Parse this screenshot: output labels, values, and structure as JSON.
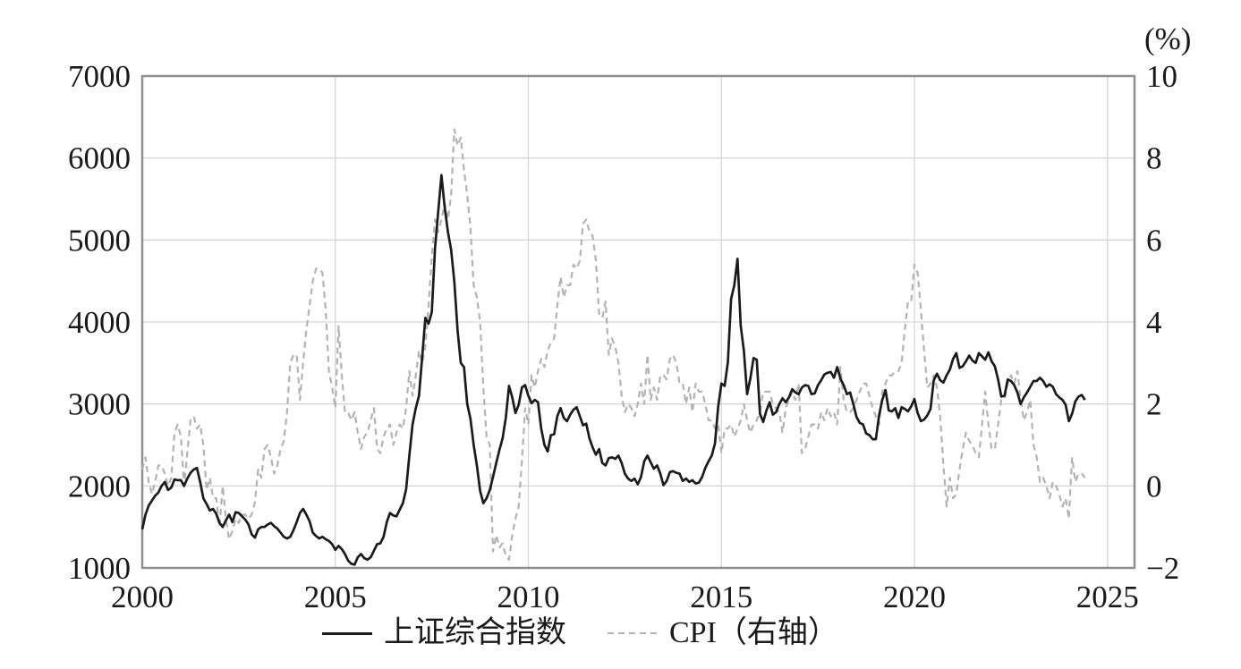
{
  "figure": {
    "background": "#ffffff"
  },
  "chart_data": {
    "type": "line",
    "title": "",
    "frequency": "monthly",
    "start": "2000-01",
    "colors": {
      "grid": "#d6d6d6",
      "frame": "#8f8f8f",
      "text": "#1a1a1a",
      "sse_line": "#1b1b1b",
      "cpi_line": "#b3b3b3"
    },
    "x_axis": {
      "min": 2000,
      "max": 2025.7,
      "labels": [
        "2000",
        "2005",
        "2010",
        "2015",
        "2020",
        "2025"
      ],
      "values": [
        2000,
        2005,
        2010,
        2015,
        2020,
        2025
      ]
    },
    "left_axis": {
      "min": 1000,
      "max": 7000,
      "labels": [
        "7000",
        "6000",
        "5000",
        "4000",
        "3000",
        "2000",
        "1000"
      ],
      "values": [
        7000,
        6000,
        5000,
        4000,
        3000,
        2000,
        1000
      ]
    },
    "right_axis": {
      "label": "(%)",
      "min": -2,
      "max": 10,
      "labels": [
        "10",
        "8",
        "6",
        "4",
        "2",
        "0",
        "−2"
      ],
      "values": [
        10,
        8,
        6,
        4,
        2,
        0,
        -2
      ]
    },
    "legend": [
      {
        "name": "上证综合指数",
        "style": "solid",
        "color": "#1b1b1b",
        "axis": "left"
      },
      {
        "name": "CPI（右轴）",
        "style": "dashed",
        "color": "#b3b3b3",
        "axis": "right"
      }
    ],
    "series": [
      {
        "name": "上证综合指数",
        "axis": "left",
        "color": "#1b1b1b",
        "width": 2.7,
        "dash": "",
        "values": [
          1470,
          1650,
          1760,
          1820,
          1880,
          1920,
          2000,
          2050,
          1950,
          1980,
          2080,
          2070,
          2070,
          2000,
          2090,
          2160,
          2200,
          2220,
          2050,
          1850,
          1780,
          1700,
          1720,
          1660,
          1550,
          1500,
          1580,
          1650,
          1560,
          1680,
          1670,
          1630,
          1590,
          1530,
          1410,
          1370,
          1470,
          1500,
          1500,
          1530,
          1550,
          1510,
          1480,
          1430,
          1380,
          1360,
          1380,
          1460,
          1560,
          1670,
          1720,
          1650,
          1570,
          1430,
          1390,
          1360,
          1380,
          1350,
          1330,
          1290,
          1220,
          1270,
          1230,
          1170,
          1090,
          1050,
          1040,
          1130,
          1170,
          1120,
          1100,
          1130,
          1210,
          1290,
          1300,
          1380,
          1560,
          1670,
          1640,
          1630,
          1710,
          1790,
          1960,
          2370,
          2750,
          2950,
          3100,
          3580,
          4050,
          3980,
          4120,
          4900,
          5350,
          5790,
          5400,
          5100,
          4880,
          4490,
          3900,
          3500,
          3450,
          3000,
          2820,
          2500,
          2250,
          1940,
          1790,
          1850,
          1950,
          2110,
          2280,
          2440,
          2580,
          2830,
          3220,
          3080,
          2890,
          2990,
          3200,
          3230,
          3100,
          3010,
          3050,
          3020,
          2700,
          2500,
          2420,
          2620,
          2630,
          2850,
          2950,
          2830,
          2790,
          2870,
          2930,
          2960,
          2850,
          2740,
          2760,
          2580,
          2470,
          2380,
          2450,
          2280,
          2250,
          2340,
          2350,
          2330,
          2370,
          2280,
          2150,
          2090,
          2060,
          2090,
          2020,
          2110,
          2300,
          2370,
          2290,
          2210,
          2250,
          2150,
          2010,
          2060,
          2170,
          2180,
          2160,
          2150,
          2060,
          2090,
          2050,
          2070,
          2030,
          2040,
          2110,
          2220,
          2300,
          2370,
          2520,
          2970,
          3250,
          3220,
          3510,
          4280,
          4450,
          4770,
          3950,
          3650,
          3120,
          3310,
          3560,
          3540,
          2880,
          2780,
          2920,
          3020,
          2870,
          2900,
          3000,
          3070,
          3020,
          3080,
          3180,
          3140,
          3120,
          3200,
          3230,
          3220,
          3120,
          3130,
          3230,
          3290,
          3360,
          3380,
          3390,
          3320,
          3450,
          3310,
          3230,
          3120,
          3140,
          3000,
          2840,
          2770,
          2750,
          2640,
          2620,
          2570,
          2570,
          2860,
          3050,
          3170,
          2920,
          2910,
          2950,
          2830,
          2960,
          2940,
          2910,
          2970,
          3060,
          2890,
          2790,
          2810,
          2860,
          2940,
          3290,
          3370,
          3290,
          3260,
          3350,
          3420,
          3550,
          3620,
          3440,
          3460,
          3520,
          3590,
          3530,
          3500,
          3620,
          3580,
          3540,
          3630,
          3520,
          3460,
          3300,
          3090,
          3100,
          3300,
          3280,
          3230,
          3140,
          3000,
          3080,
          3140,
          3210,
          3280,
          3280,
          3320,
          3280,
          3210,
          3240,
          3210,
          3120,
          3080,
          3050,
          2990,
          2790,
          2880,
          3030,
          3090,
          3110,
          3050
        ]
      },
      {
        "name": "CPI（右轴）",
        "axis": "right",
        "color": "#b3b3b3",
        "width": 2.2,
        "dash": "7 5",
        "values": [
          0.4,
          0.7,
          0.1,
          -0.2,
          0.1,
          0.5,
          0.5,
          0.3,
          0.0,
          0.2,
          1.3,
          1.5,
          1.2,
          0.0,
          0.8,
          1.6,
          1.7,
          1.4,
          1.5,
          1.0,
          -0.1,
          0.2,
          -0.3,
          -0.3,
          -1.0,
          0.0,
          -0.8,
          -1.3,
          -1.1,
          -0.8,
          -0.9,
          -0.7,
          -0.7,
          -0.8,
          -0.7,
          -0.4,
          0.4,
          0.2,
          0.9,
          1.0,
          0.7,
          0.3,
          0.5,
          0.9,
          1.1,
          1.8,
          3.0,
          3.2,
          3.2,
          2.1,
          3.0,
          3.8,
          4.4,
          5.0,
          5.3,
          5.3,
          5.2,
          4.3,
          2.8,
          2.4,
          1.9,
          3.9,
          2.7,
          1.8,
          1.8,
          1.6,
          1.8,
          1.3,
          0.9,
          1.2,
          1.3,
          1.6,
          1.9,
          0.9,
          0.8,
          1.2,
          1.4,
          1.5,
          1.0,
          1.3,
          1.5,
          1.4,
          1.9,
          2.8,
          2.2,
          2.7,
          3.3,
          3.0,
          3.4,
          4.4,
          5.6,
          6.5,
          6.2,
          6.5,
          6.9,
          6.5,
          7.1,
          8.7,
          8.3,
          8.5,
          7.7,
          7.1,
          6.3,
          4.9,
          4.6,
          4.0,
          2.4,
          1.2,
          1.0,
          -1.6,
          -1.2,
          -1.5,
          -1.4,
          -1.7,
          -1.8,
          -1.2,
          -0.8,
          -0.5,
          0.6,
          1.9,
          1.5,
          2.7,
          2.4,
          2.8,
          3.1,
          2.9,
          3.3,
          3.5,
          3.6,
          4.4,
          5.1,
          4.6,
          4.9,
          4.9,
          5.4,
          5.3,
          5.5,
          6.4,
          6.5,
          6.2,
          6.1,
          5.5,
          4.2,
          4.1,
          4.5,
          3.2,
          3.6,
          3.4,
          3.0,
          2.2,
          1.8,
          2.0,
          1.9,
          1.7,
          2.0,
          2.5,
          2.0,
          3.2,
          2.1,
          2.4,
          2.1,
          2.7,
          2.7,
          2.6,
          3.1,
          3.2,
          3.0,
          2.5,
          2.5,
          2.0,
          2.4,
          1.8,
          2.5,
          2.3,
          2.3,
          2.0,
          1.6,
          1.6,
          1.4,
          1.5,
          0.8,
          1.4,
          1.4,
          1.5,
          1.2,
          1.4,
          1.6,
          2.0,
          1.6,
          1.3,
          1.5,
          1.6,
          1.8,
          2.3,
          2.3,
          2.3,
          2.0,
          1.9,
          1.8,
          1.3,
          1.9,
          2.1,
          2.3,
          2.1,
          2.5,
          0.8,
          0.9,
          1.2,
          1.5,
          1.5,
          1.4,
          1.8,
          1.6,
          1.9,
          1.7,
          1.8,
          1.5,
          2.9,
          2.1,
          1.8,
          1.8,
          1.9,
          2.1,
          2.3,
          2.5,
          2.5,
          2.2,
          1.9,
          1.7,
          1.5,
          2.3,
          2.5,
          2.7,
          2.7,
          2.8,
          2.8,
          3.0,
          3.8,
          4.5,
          4.5,
          5.4,
          5.2,
          4.3,
          3.3,
          2.4,
          2.5,
          2.7,
          2.4,
          1.7,
          0.5,
          -0.5,
          0.2,
          -0.3,
          -0.2,
          0.4,
          0.9,
          1.3,
          1.1,
          1.0,
          0.8,
          0.7,
          1.5,
          2.3,
          1.5,
          0.9,
          0.9,
          1.5,
          2.1,
          2.1,
          2.5,
          2.7,
          2.5,
          2.8,
          2.1,
          1.6,
          1.8,
          2.1,
          1.0,
          0.7,
          0.1,
          0.2,
          0.0,
          -0.3,
          0.1,
          0.0,
          -0.2,
          -0.5,
          -0.3,
          -0.8,
          0.7,
          0.1,
          0.3,
          0.3,
          0.2
        ]
      }
    ]
  }
}
